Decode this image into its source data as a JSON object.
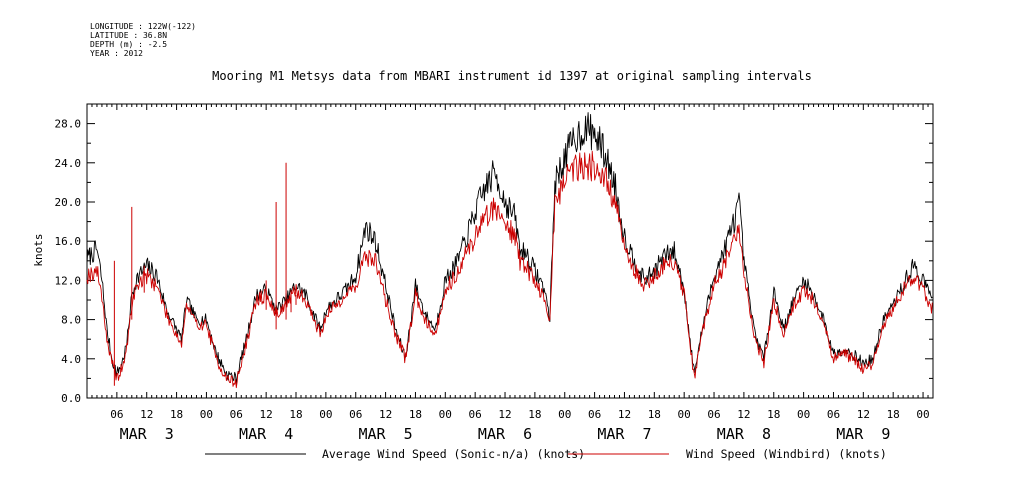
{
  "meta": {
    "longitude": "LONGITUDE : 122W(-122)",
    "latitude": "LATITUDE : 36.8N",
    "depth": "DEPTH (m) : -2.5",
    "year": "YEAR : 2012"
  },
  "chart_data": {
    "type": "line",
    "title": "Mooring M1 Metsys data from MBARI instrument id 1397 at original sampling intervals",
    "xlabel": "",
    "ylabel": "knots",
    "xlim_hours": [
      0,
      170
    ],
    "ylim": [
      0,
      30
    ],
    "y_ticks": [
      "0.0",
      "4.0",
      "8.0",
      "12.0",
      "16.0",
      "20.0",
      "24.0",
      "28.0"
    ],
    "x_tick_labels": [
      "06",
      "12",
      "18",
      "00",
      "06",
      "12",
      "18",
      "00",
      "06",
      "12",
      "18",
      "00",
      "06",
      "12",
      "18",
      "00",
      "06",
      "12",
      "18",
      "00",
      "06",
      "12",
      "18",
      "00",
      "06",
      "12",
      "18",
      "00"
    ],
    "day_labels": [
      "MAR  3",
      "MAR  4",
      "MAR  5",
      "MAR  6",
      "MAR  7",
      "MAR  8",
      "MAR  9"
    ],
    "grid": false,
    "legend": "bottom",
    "series": [
      {
        "name": "Average Wind Speed (Sonic-n/a) (knots)",
        "color": "#000000",
        "x": [
          0,
          2,
          3,
          4,
          5,
          6,
          7,
          8,
          9,
          10,
          12,
          14,
          16,
          18,
          19,
          20,
          22,
          24,
          26,
          28,
          30,
          32,
          34,
          36,
          37,
          38,
          40,
          42,
          44,
          46,
          47,
          48,
          50,
          52,
          54,
          56,
          58,
          60,
          62,
          64,
          66,
          68,
          70,
          72,
          74,
          76,
          78,
          80,
          82,
          84,
          86,
          87,
          88,
          90,
          92,
          93,
          94,
          96,
          98,
          100,
          102,
          104,
          106,
          108,
          110,
          112,
          114,
          116,
          118,
          120,
          122,
          124,
          126,
          128,
          130,
          131,
          132,
          134,
          136,
          138,
          140,
          142,
          144,
          146,
          148,
          150,
          152,
          154,
          156,
          158,
          160,
          162,
          164,
          166,
          168,
          170
        ],
        "values": [
          14.2,
          15.2,
          12.0,
          7.0,
          4.0,
          2.5,
          3.5,
          5.5,
          10.5,
          12.2,
          13.5,
          12.5,
          9.0,
          7.0,
          6.0,
          10.0,
          8.0,
          8.0,
          4.5,
          2.5,
          2.0,
          6.0,
          10.5,
          11.0,
          10.0,
          9.0,
          10.0,
          11.5,
          10.5,
          8.0,
          7.0,
          9.0,
          10.0,
          11.0,
          12.5,
          17.5,
          16.0,
          11.5,
          7.0,
          4.0,
          11.5,
          8.5,
          7.0,
          12.0,
          13.5,
          16.0,
          19.0,
          21.5,
          23.0,
          20.0,
          18.5,
          15.0,
          15.0,
          13.0,
          11.0,
          8.0,
          22.0,
          24.5,
          26.5,
          27.5,
          27.0,
          25.0,
          22.0,
          16.5,
          14.0,
          12.0,
          13.0,
          14.5,
          15.0,
          11.0,
          2.5,
          8.0,
          12.5,
          15.0,
          18.0,
          20.0,
          14.0,
          7.0,
          4.0,
          11.0,
          7.0,
          10.0,
          12.0,
          10.5,
          8.0,
          4.5,
          5.0,
          4.5,
          3.5,
          4.0,
          8.0,
          9.5,
          11.5,
          13.5,
          12.0,
          10.0
        ]
      },
      {
        "name": "Wind Speed (Windbird) (knots)",
        "color": "#cc0000",
        "x": [
          0,
          2,
          3,
          4,
          5,
          6,
          7,
          8,
          9,
          10,
          12,
          14,
          16,
          18,
          19,
          20,
          22,
          24,
          26,
          28,
          30,
          32,
          34,
          36,
          37,
          38,
          40,
          42,
          44,
          46,
          47,
          48,
          50,
          52,
          54,
          56,
          58,
          60,
          62,
          64,
          66,
          68,
          70,
          72,
          74,
          76,
          78,
          80,
          82,
          84,
          86,
          87,
          88,
          90,
          92,
          93,
          94,
          96,
          98,
          100,
          102,
          104,
          106,
          108,
          110,
          112,
          114,
          116,
          118,
          120,
          122,
          124,
          126,
          128,
          130,
          131,
          132,
          134,
          136,
          138,
          140,
          142,
          144,
          146,
          148,
          150,
          152,
          154,
          156,
          158,
          160,
          162,
          164,
          166,
          168,
          170
        ],
        "values": [
          12.5,
          13.0,
          10.5,
          6.0,
          3.5,
          2.0,
          3.0,
          5.0,
          9.5,
          11.5,
          12.5,
          11.5,
          8.5,
          6.5,
          5.5,
          9.5,
          7.5,
          7.5,
          4.0,
          2.0,
          1.5,
          5.5,
          10.0,
          10.5,
          9.5,
          8.5,
          9.5,
          11.0,
          10.0,
          7.5,
          6.5,
          8.5,
          9.5,
          10.5,
          11.5,
          14.5,
          14.0,
          10.0,
          6.5,
          4.0,
          10.5,
          8.0,
          6.5,
          11.0,
          12.5,
          14.5,
          16.5,
          18.5,
          19.5,
          18.0,
          16.5,
          14.0,
          13.5,
          12.0,
          10.0,
          7.5,
          20.0,
          22.5,
          23.5,
          24.0,
          23.5,
          22.5,
          20.0,
          15.5,
          13.0,
          11.5,
          12.5,
          13.5,
          14.0,
          10.5,
          2.0,
          7.5,
          11.5,
          13.5,
          16.0,
          17.0,
          13.0,
          6.5,
          3.5,
          10.0,
          6.5,
          9.5,
          11.0,
          10.0,
          7.5,
          4.0,
          4.5,
          4.0,
          3.0,
          3.5,
          7.5,
          9.0,
          11.0,
          12.5,
          11.0,
          9.0
        ]
      }
    ],
    "spikes": {
      "series": "Wind Speed (Windbird) (knots)",
      "x": [
        5.5,
        9,
        11.5,
        36,
        38,
        40,
        41,
        42
      ],
      "values": [
        14.0,
        19.5,
        13.5,
        12.0,
        20.0,
        24.0,
        11.0,
        10.5
      ]
    }
  }
}
